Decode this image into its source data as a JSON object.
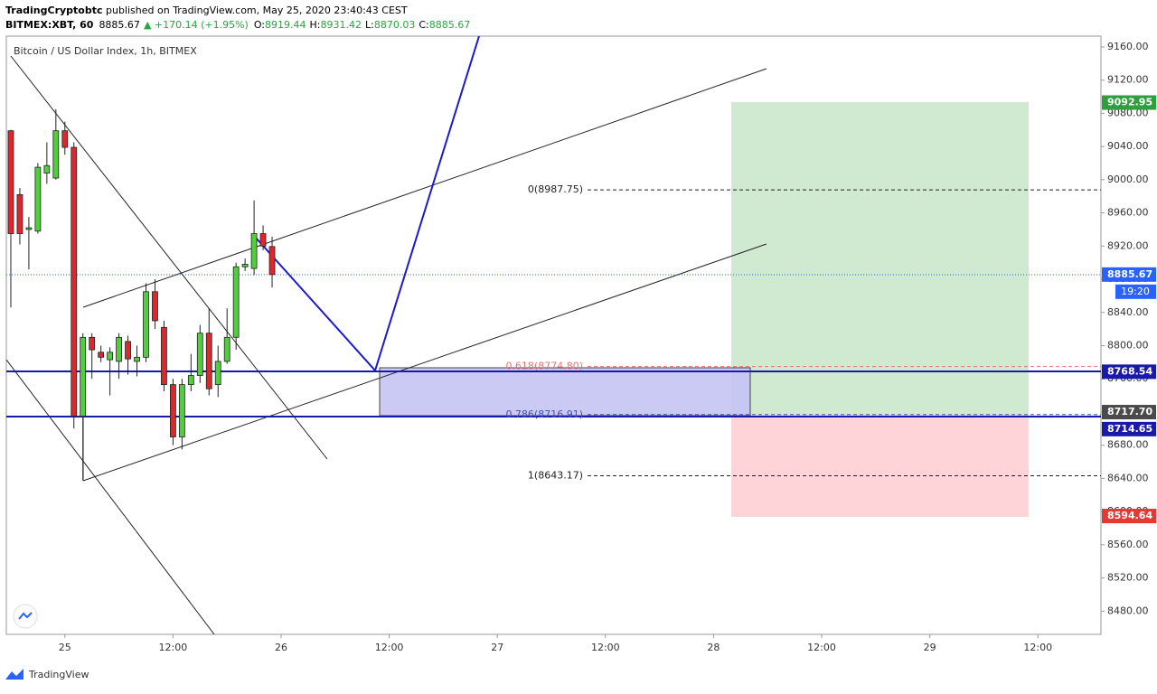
{
  "header": {
    "publisher": "TradingCryptobtc",
    "published": " published on TradingView.com, May 25, 2020 23:40:43 CEST",
    "symbol": "BITMEX:XBT, 60",
    "last": "8885.67",
    "change": "▲ +170.14 (+1.95%)",
    "ohlc": [
      {
        "key": "O:",
        "val": "8919.44"
      },
      {
        "key": "H:",
        "val": "8931.42"
      },
      {
        "key": "L:",
        "val": "8870.03"
      },
      {
        "key": "C:",
        "val": "8885.67"
      }
    ]
  },
  "footer": {
    "brand": "TradingView"
  },
  "chart_data": {
    "type": "candlestick",
    "title": "Bitcoin / US Dollar Index, 1h, BITMEX",
    "up_color": "#4cd137",
    "down_color": "#e0262b",
    "grid": false,
    "x": [
      -6,
      -5,
      -4,
      -3,
      -2,
      -1,
      0,
      1,
      2,
      3,
      4,
      5,
      6,
      7,
      8,
      9,
      10,
      11,
      12,
      13,
      14,
      15,
      16,
      17,
      18,
      19,
      20,
      21,
      22,
      23
    ],
    "open": [
      9059,
      8982,
      8940,
      8938,
      9008,
      9002,
      9059,
      9039,
      8715,
      8810,
      8792,
      8783,
      8781,
      8805,
      8781,
      8786,
      8865,
      8822,
      8753,
      8690,
      8753,
      8764,
      8815,
      8753,
      8781,
      8810,
      8895,
      8893,
      8935,
      8919.44
    ],
    "high": [
      9060,
      8990,
      8955,
      9020,
      9045,
      9085,
      9070,
      9045,
      8815,
      8815,
      8800,
      8798,
      8815,
      8812,
      8800,
      8875,
      8880,
      8830,
      8760,
      8760,
      8790,
      8825,
      8845,
      8800,
      8845,
      8900,
      8905,
      8975,
      8945,
      8931.42
    ],
    "low": [
      8846,
      8922,
      8892,
      8935,
      8995,
      9000,
      9030,
      8700,
      8638,
      8760,
      8780,
      8740,
      8760,
      8765,
      8763,
      8780,
      8820,
      8745,
      8680,
      8675,
      8745,
      8755,
      8740,
      8738,
      8778,
      8795,
      8890,
      8885,
      8915,
      8870.03
    ],
    "close": [
      8935,
      8935,
      8942,
      9015,
      9017,
      9059,
      9039,
      8715,
      8810,
      8795,
      8786,
      8792,
      8810,
      8784,
      8786,
      8865,
      8830,
      8753,
      8690,
      8753,
      8764,
      8815,
      8748,
      8781,
      8810,
      8895,
      8898,
      8935,
      8920,
      8885.67
    ],
    "xlim": [
      -6.5,
      115
    ],
    "xticks": [
      {
        "value": 0,
        "label": "25"
      },
      {
        "value": 12,
        "label": "12:00"
      },
      {
        "value": 24,
        "label": "26"
      },
      {
        "value": 36,
        "label": "12:00"
      },
      {
        "value": 48,
        "label": "27"
      },
      {
        "value": 60,
        "label": "12:00"
      },
      {
        "value": 72,
        "label": "28"
      },
      {
        "value": 84,
        "label": "12:00"
      },
      {
        "value": 96,
        "label": "29"
      },
      {
        "value": 108,
        "label": "12:00"
      }
    ],
    "ylim": [
      8452,
      9173
    ],
    "yticks": [
      {
        "value": 8480,
        "label": "8480.00"
      },
      {
        "value": 8520,
        "label": "8520.00"
      },
      {
        "value": 8560,
        "label": "8560.00"
      },
      {
        "value": 8600,
        "label": "8600.00"
      },
      {
        "value": 8640,
        "label": "8640.00"
      },
      {
        "value": 8680,
        "label": "8680.00"
      },
      {
        "value": 8720,
        "label": "8720.00"
      },
      {
        "value": 8760,
        "label": "8760.00"
      },
      {
        "value": 8800,
        "label": "8800.00"
      },
      {
        "value": 8840,
        "label": "8840.00"
      },
      {
        "value": 8880,
        "label": "8880.00"
      },
      {
        "value": 8920,
        "label": "8920.00"
      },
      {
        "value": 8960,
        "label": "8960.00"
      },
      {
        "value": 9000,
        "label": "9000.00"
      },
      {
        "value": 9040,
        "label": "9040.00"
      },
      {
        "value": 9080,
        "label": "9080.00"
      },
      {
        "value": 9120,
        "label": "9120.00"
      },
      {
        "value": 9160,
        "label": "9160.00"
      }
    ],
    "fib_levels": [
      {
        "value": 8987.75,
        "label": "0(8987.75)",
        "color": "#222222"
      },
      {
        "value": 8774.8,
        "label": "0.618(8774.80)",
        "color": "#e57373"
      },
      {
        "value": 8716.91,
        "label": "0.786(8716.91)",
        "color": "#3f51b5"
      },
      {
        "value": 8643.17,
        "label": "1(8643.17)",
        "color": "#222222"
      }
    ],
    "price_labels": [
      {
        "value": 9092.95,
        "label": "9092.95",
        "color": "#2e9e3f"
      },
      {
        "value": 8885.67,
        "label": "8885.67",
        "color": "#2962ff"
      },
      {
        "value": 8768.54,
        "label": "8768.54",
        "color": "#1a1aa8"
      },
      {
        "value": 8717.7,
        "label": "8717.70",
        "color": "#4a4a4a"
      },
      {
        "value": 8714.65,
        "label": "8714.65",
        "color": "#1a1aa8"
      },
      {
        "value": 8594.64,
        "label": "8594.64",
        "color": "#e53935"
      }
    ],
    "countdown": "19:20"
  }
}
